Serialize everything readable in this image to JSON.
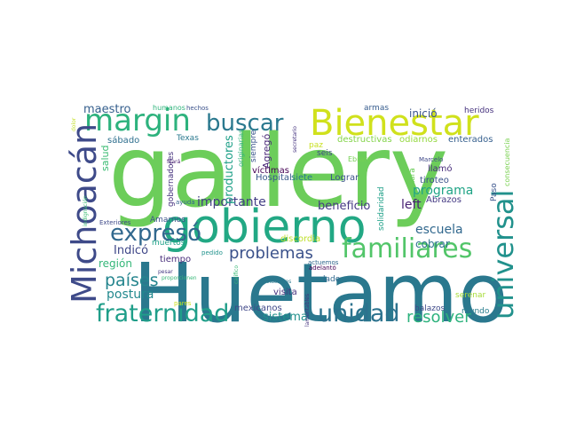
{
  "words": [
    {
      "text": "gallery",
      "color": "#6ccd5a"
    },
    {
      "text": "Huetamo",
      "color": "#2a788e"
    },
    {
      "text": "gobierno",
      "color": "#22a884"
    },
    {
      "text": "Bienestar",
      "color": "#d0e11c"
    },
    {
      "text": "margin",
      "color": "#2db27d"
    },
    {
      "text": "Michoacán",
      "color": "#3e4a89"
    },
    {
      "text": "familiares",
      "color": "#52c569"
    },
    {
      "text": "universal",
      "color": "#21918c"
    },
    {
      "text": "fraternidad",
      "color": "#1f9e89"
    },
    {
      "text": "unidad",
      "color": "#2c728e"
    },
    {
      "text": "buscar",
      "color": "#2a788e"
    },
    {
      "text": "expresó",
      "color": "#31688e"
    },
    {
      "text": "resolver",
      "color": "#2db27d"
    },
    {
      "text": "problemas",
      "color": "#3b528b"
    },
    {
      "text": "países",
      "color": "#25858e"
    },
    {
      "text": "importante",
      "color": "#433e85"
    },
    {
      "text": "escuela",
      "color": "#31688e"
    },
    {
      "text": "programa",
      "color": "#20a486"
    },
    {
      "text": "beneficio",
      "color": "#443983"
    },
    {
      "text": "left",
      "color": "#482173"
    },
    {
      "text": "postura",
      "color": "#23898e"
    },
    {
      "text": "región",
      "color": "#35b779"
    },
    {
      "text": "Indicó",
      "color": "#3f4788"
    },
    {
      "text": "sistema",
      "color": "#21918c"
    },
    {
      "text": "cobrar",
      "color": "#2c728e"
    },
    {
      "text": "maestro",
      "color": "#355f8d"
    },
    {
      "text": "inició",
      "color": "#3a548c"
    },
    {
      "text": "salud",
      "color": "#3dbc74"
    },
    {
      "text": "mexicanos",
      "color": "#3f4788"
    },
    {
      "text": "visita",
      "color": "#46327e"
    },
    {
      "text": "sábado",
      "color": "#2e6f8e"
    },
    {
      "text": "Agregó",
      "color": "#482677"
    },
    {
      "text": "productores",
      "color": "#1fa088"
    },
    {
      "text": "gobernadores",
      "color": "#46327e"
    },
    {
      "text": "víctimas",
      "color": "#440154"
    },
    {
      "text": "Hospital",
      "color": "#38598c"
    },
    {
      "text": "siete",
      "color": "#2a788e"
    },
    {
      "text": "Lograr",
      "color": "#3b528b"
    },
    {
      "text": "llamó",
      "color": "#472d7b"
    },
    {
      "text": "tiroteo",
      "color": "#3b528b"
    },
    {
      "text": "Abrazos",
      "color": "#443983"
    },
    {
      "text": "Rura",
      "color": "#6ccd5a"
    },
    {
      "text": "seis",
      "color": "#3f4788"
    },
    {
      "text": "paz",
      "color": "#c8e020"
    },
    {
      "text": "destructivas",
      "color": "#84d44b"
    },
    {
      "text": "odiarnos",
      "color": "#95d840"
    },
    {
      "text": "enterados",
      "color": "#355f8d"
    },
    {
      "text": "heridos",
      "color": "#46327e"
    },
    {
      "text": "armas",
      "color": "#365c8d"
    },
    {
      "text": "consecuencia",
      "color": "#7ad151"
    },
    {
      "text": "Paso",
      "color": "#3a548c"
    },
    {
      "text": "serenar",
      "color": "#a5db36"
    },
    {
      "text": "mundo",
      "color": "#287d8e"
    },
    {
      "text": "balazos",
      "color": "#3e4a89"
    },
    {
      "text": "lado",
      "color": "#31688e"
    },
    {
      "text": "discordia",
      "color": "#bddf26"
    },
    {
      "text": "tiempo",
      "color": "#472c7a"
    },
    {
      "text": "muertos",
      "color": "#1fa188"
    },
    {
      "text": "Amarnos",
      "color": "#3b528b"
    },
    {
      "text": "Exteriores",
      "color": "#3e4989"
    },
    {
      "text": "humanos",
      "color": "#2fb47c"
    },
    {
      "text": "hechos",
      "color": "#3b528b"
    },
    {
      "text": "Texas",
      "color": "#2a788e"
    },
    {
      "text": "ayuda",
      "color": "#33638d"
    },
    {
      "text": "actuemos",
      "color": "#31688e"
    },
    {
      "text": "Relaciones",
      "color": "#2a788e"
    },
    {
      "text": "pedido",
      "color": "#20928c"
    },
    {
      "text": "pesar",
      "color": "#443a83"
    },
    {
      "text": "proporcionen",
      "color": "#37b878"
    },
    {
      "text": "adelantó",
      "color": "#440154"
    },
    {
      "text": "lamentables",
      "color": "#46337f"
    },
    {
      "text": "secretario",
      "color": "#463480"
    },
    {
      "text": "originarias",
      "color": "#2db27d"
    },
    {
      "text": "siempre",
      "color": "#3a548c"
    },
    {
      "text": "fijará",
      "color": "#482071"
    },
    {
      "text": "Ebrard",
      "color": "#75d054"
    },
    {
      "text": "solidaridad",
      "color": "#1fa088"
    },
    {
      "text": "Marcelo",
      "color": "#3f4889"
    },
    {
      "text": "indignación",
      "color": "#3dbc74"
    },
    {
      "text": "dolor",
      "color": "#c2df23"
    },
    {
      "text": "califico",
      "color": "#3aba76"
    },
    {
      "text": "pares",
      "color": "#cde11d"
    }
  ]
}
